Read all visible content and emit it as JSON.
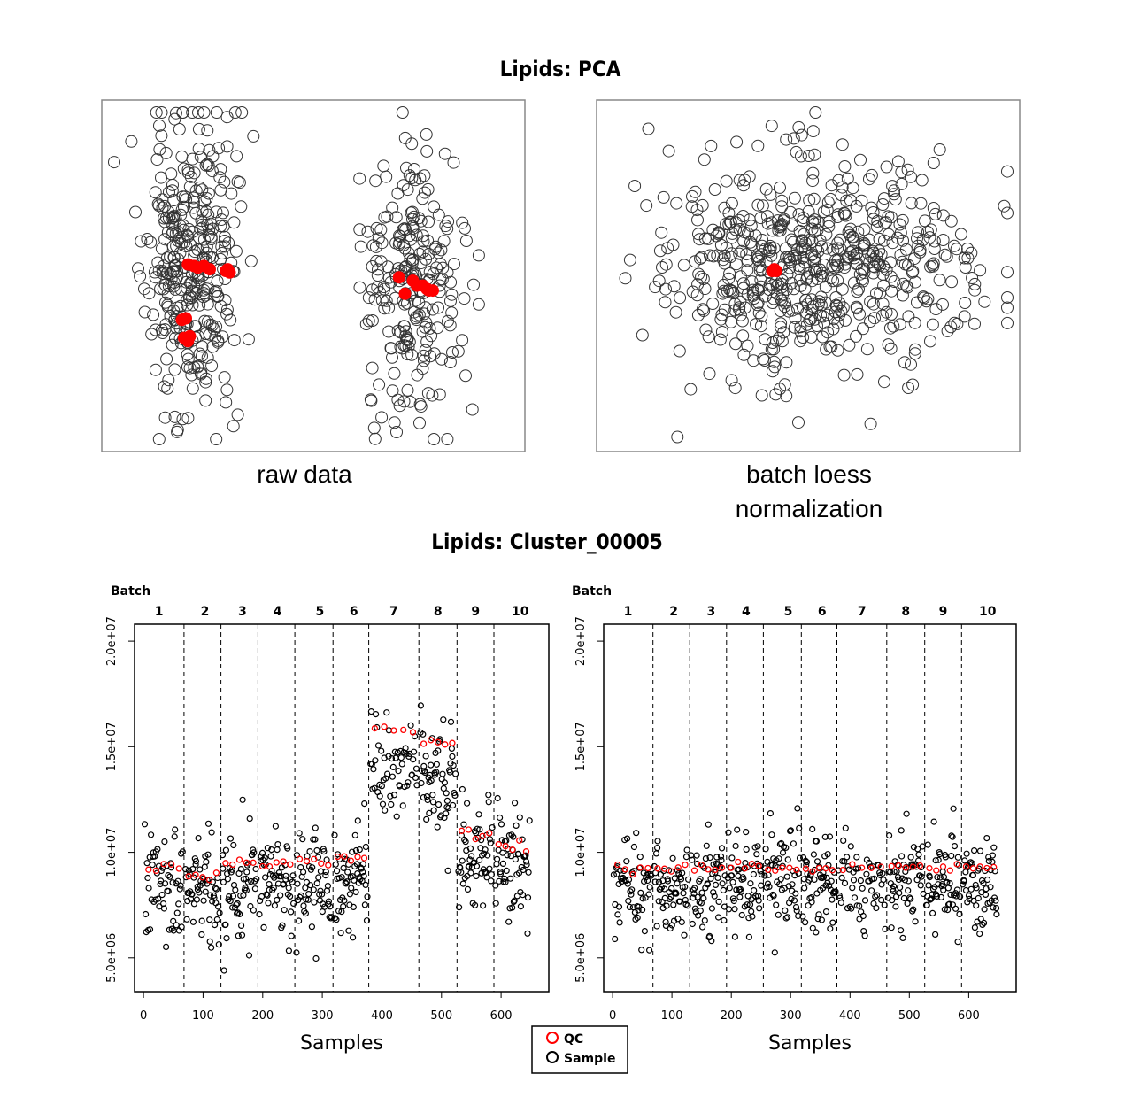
{
  "pca_title": "Lipids:  PCA",
  "cluster_title": "Lipids:  Cluster_00005",
  "legend": {
    "qc_label": "QC",
    "sample_label": "Sample"
  },
  "colors": {
    "qc": "#ff0000",
    "sample": "#000000",
    "frame": "#888888"
  },
  "chart_data": [
    {
      "type": "scatter",
      "name": "pca-raw",
      "caption": "raw data",
      "xlim": [
        -1,
        1
      ],
      "ylim": [
        -1,
        1
      ],
      "clusters": [
        {
          "cx": -0.62,
          "cy": 0.05,
          "sx": 0.11,
          "sy": 0.45,
          "n": 340
        },
        {
          "cx": 0.5,
          "cy": 0.02,
          "sx": 0.13,
          "sy": 0.42,
          "n": 240
        }
      ],
      "qc_points": [
        [
          -0.63,
          0.07
        ],
        [
          -0.6,
          0.06
        ],
        [
          -0.58,
          0.05
        ],
        [
          -0.55,
          0.06
        ],
        [
          -0.52,
          0.04
        ],
        [
          -0.43,
          0.04
        ],
        [
          -0.42,
          0.02
        ],
        [
          -0.44,
          0.03
        ],
        [
          -0.66,
          -0.27
        ],
        [
          -0.64,
          -0.26
        ],
        [
          -0.65,
          -0.38
        ],
        [
          -0.62,
          -0.37
        ],
        [
          -0.63,
          -0.4
        ],
        [
          0.5,
          -0.03
        ],
        [
          0.52,
          -0.06
        ],
        [
          0.55,
          -0.06
        ],
        [
          0.57,
          -0.08
        ],
        [
          0.6,
          -0.09
        ],
        [
          0.58,
          -0.09
        ],
        [
          0.43,
          -0.01
        ],
        [
          0.46,
          -0.11
        ]
      ]
    },
    {
      "type": "scatter",
      "name": "pca-normalized",
      "caption": "batch loess normalization",
      "xlim": [
        -1,
        1
      ],
      "ylim": [
        -1,
        1
      ],
      "clusters": [
        {
          "cx": 0.02,
          "cy": 0.08,
          "sx": 0.38,
          "sy": 0.32,
          "n": 620
        }
      ],
      "qc_points": [
        [
          -0.17,
          0.04
        ],
        [
          -0.18,
          0.03
        ],
        [
          -0.16,
          0.03
        ]
      ]
    },
    {
      "type": "scatter",
      "name": "raw-intensity",
      "title": "Batch",
      "xlabel": "Samples",
      "xlim": [
        -15,
        680
      ],
      "ylim": [
        3400000,
        20800000
      ],
      "xticks": [
        0,
        100,
        200,
        300,
        400,
        500,
        600
      ],
      "yticks": [
        5000000,
        10000000,
        15000000,
        20000000
      ],
      "ytick_labels": [
        "5.0e+06",
        "1.0e+07",
        "1.5e+07",
        "2.0e+07"
      ],
      "batch_bounds": [
        68,
        130,
        192,
        254,
        318,
        378,
        462,
        526,
        588
      ],
      "batch_labels": [
        "1",
        "2",
        "3",
        "4",
        "5",
        "6",
        "7",
        "8",
        "9",
        "10"
      ],
      "batch_label_x": [
        26,
        103,
        166,
        225,
        296,
        353,
        420,
        494,
        557,
        632
      ],
      "batch_means": [
        8300000,
        8200000,
        8500000,
        8600000,
        8800000,
        8900000,
        14200000,
        13800000,
        10000000,
        9200000
      ],
      "qc_means": [
        9300000,
        8900000,
        9500000,
        9400000,
        9600000,
        9700000,
        15800000,
        15200000,
        10900000,
        10200000
      ],
      "spread": 1300000,
      "qc_per_batch": 5,
      "samples_per_batch": 58
    },
    {
      "type": "scatter",
      "name": "normalized-intensity",
      "title": "Batch",
      "xlabel": "Samples",
      "xlim": [
        -15,
        680
      ],
      "ylim": [
        3400000,
        20800000
      ],
      "xticks": [
        0,
        100,
        200,
        300,
        400,
        500,
        600
      ],
      "yticks": [
        5000000,
        10000000,
        15000000,
        20000000
      ],
      "ytick_labels": [
        "5.0e+06",
        "1.0e+07",
        "1.5e+07",
        "2.0e+07"
      ],
      "batch_bounds": [
        68,
        130,
        192,
        254,
        318,
        378,
        462,
        526,
        588
      ],
      "batch_labels": [
        "1",
        "2",
        "3",
        "4",
        "5",
        "6",
        "7",
        "8",
        "9",
        "10"
      ],
      "batch_label_x": [
        26,
        103,
        166,
        225,
        296,
        353,
        420,
        494,
        557,
        632
      ],
      "batch_means": [
        8300000,
        8300000,
        8400000,
        8400000,
        8500000,
        8600000,
        8600000,
        8500000,
        8500000,
        8400000
      ],
      "qc_means": [
        9300000,
        9300000,
        9300000,
        9300000,
        9300000,
        9300000,
        9300000,
        9300000,
        9300000,
        9300000
      ],
      "spread": 1100000,
      "qc_per_batch": 5,
      "samples_per_batch": 58
    }
  ]
}
